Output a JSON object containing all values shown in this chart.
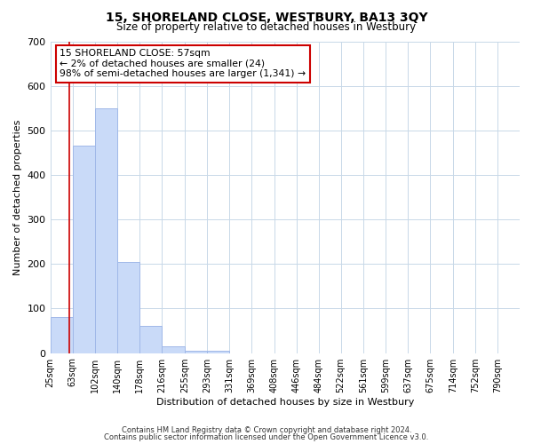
{
  "title": "15, SHORELAND CLOSE, WESTBURY, BA13 3QY",
  "subtitle": "Size of property relative to detached houses in Westbury",
  "xlabel": "Distribution of detached houses by size in Westbury",
  "ylabel": "Number of detached properties",
  "bin_labels": [
    "25sqm",
    "63sqm",
    "102sqm",
    "140sqm",
    "178sqm",
    "216sqm",
    "255sqm",
    "293sqm",
    "331sqm",
    "369sqm",
    "408sqm",
    "446sqm",
    "484sqm",
    "522sqm",
    "561sqm",
    "599sqm",
    "637sqm",
    "675sqm",
    "714sqm",
    "752sqm",
    "790sqm"
  ],
  "bin_edges": [
    25,
    63,
    102,
    140,
    178,
    216,
    255,
    293,
    331,
    369,
    408,
    446,
    484,
    522,
    561,
    599,
    637,
    675,
    714,
    752,
    790
  ],
  "bar_heights": [
    80,
    465,
    550,
    205,
    60,
    15,
    5,
    5,
    0,
    0,
    0,
    0,
    0,
    0,
    0,
    0,
    0,
    0,
    0,
    0
  ],
  "bar_color": "#c9daf8",
  "bar_edge_color": "#a0b8e8",
  "property_size": 57,
  "vline_color": "#cc0000",
  "annotation_line1": "15 SHORELAND CLOSE: 57sqm",
  "annotation_line2": "← 2% of detached houses are smaller (24)",
  "annotation_line3": "98% of semi-detached houses are larger (1,341) →",
  "annotation_box_color": "#cc0000",
  "ylim": [
    0,
    700
  ],
  "yticks": [
    0,
    100,
    200,
    300,
    400,
    500,
    600,
    700
  ],
  "footer_line1": "Contains HM Land Registry data © Crown copyright and database right 2024.",
  "footer_line2": "Contains public sector information licensed under the Open Government Licence v3.0.",
  "background_color": "#ffffff",
  "grid_color": "#c8d8e8",
  "title_fontsize": 10,
  "subtitle_fontsize": 8.5,
  "ylabel_fontsize": 8,
  "xlabel_fontsize": 8
}
